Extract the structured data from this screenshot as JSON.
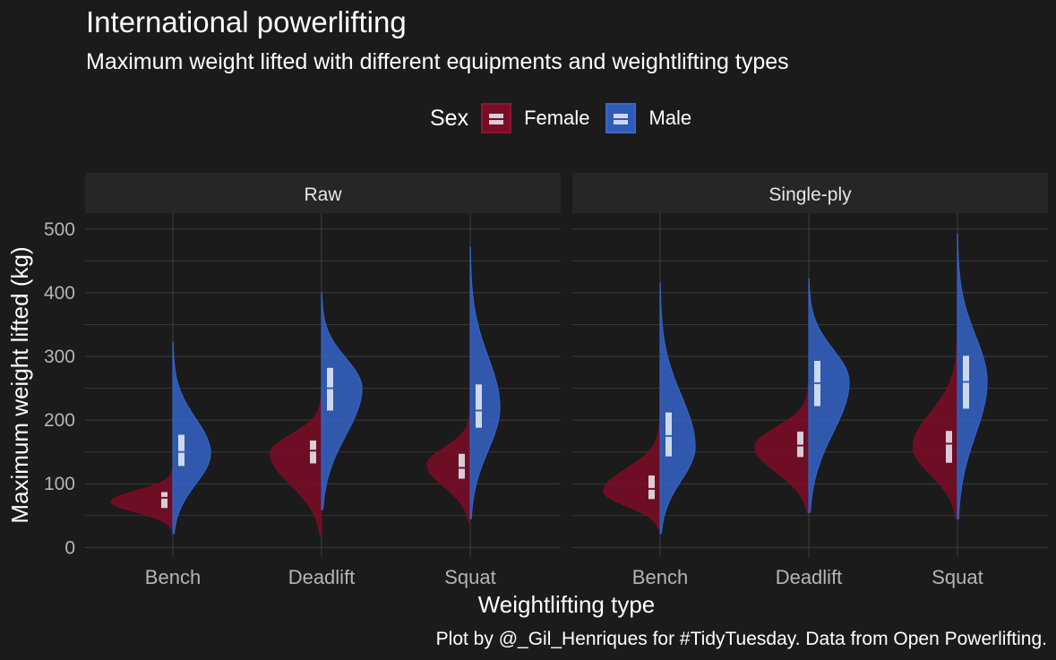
{
  "title": "International powerlifting",
  "subtitle": "Maximum weight lifted with different equipments and weightlifting types",
  "caption": "Plot by @_Gil_Henriques for #TidyTuesday. Data from Open Powerlifting.",
  "legend": {
    "title": "Sex",
    "items": [
      {
        "label": "Female",
        "color": "#7b0c26",
        "border": "#8e1530"
      },
      {
        "label": "Male",
        "color": "#2f5bb8",
        "border": "#3a68c8"
      }
    ]
  },
  "colors": {
    "background": "#1b1b1b",
    "panel_strip": "#262626",
    "grid": "#3d3d3d",
    "tick_text": "#b5b5b5",
    "female_fill": "#7b0c26",
    "male_fill": "#3463c6",
    "box_fill": "#e9eef8"
  },
  "chart_data": {
    "type": "split-violin",
    "xlabel": "Weightlifting type",
    "ylabel": "Maximum weight lifted (kg)",
    "ylim": [
      -15,
      525
    ],
    "yticks": [
      0,
      100,
      200,
      300,
      400,
      500
    ],
    "categories": [
      "Bench",
      "Deadlift",
      "Squat"
    ],
    "grid": true,
    "legend_position": "top",
    "panels": [
      {
        "name": "Raw",
        "groups": [
          {
            "category": "Bench",
            "female": {
              "min": 30,
              "max": 125,
              "mode": 72,
              "q1": 62,
              "median": 78,
              "q3": 87,
              "width": 0.46
            },
            "male": {
              "min": 22,
              "max": 322,
              "mode": 148,
              "q1": 128,
              "median": 150,
              "q3": 177,
              "width": 0.28
            }
          },
          {
            "category": "Deadlift",
            "female": {
              "min": 20,
              "max": 240,
              "mode": 148,
              "q1": 132,
              "median": 152,
              "q3": 168,
              "width": 0.38
            },
            "male": {
              "min": 60,
              "max": 400,
              "mode": 250,
              "q1": 215,
              "median": 250,
              "q3": 282,
              "width": 0.3
            }
          },
          {
            "category": "Squat",
            "female": {
              "min": 40,
              "max": 215,
              "mode": 130,
              "q1": 108,
              "median": 125,
              "q3": 147,
              "width": 0.32
            },
            "male": {
              "min": 45,
              "max": 472,
              "mode": 220,
              "q1": 188,
              "median": 215,
              "q3": 256,
              "width": 0.22
            }
          }
        ]
      },
      {
        "name": "Single-ply",
        "groups": [
          {
            "category": "Bench",
            "female": {
              "min": 30,
              "max": 200,
              "mode": 88,
              "q1": 76,
              "median": 92,
              "q3": 113,
              "width": 0.42
            },
            "male": {
              "min": 22,
              "max": 415,
              "mode": 158,
              "q1": 143,
              "median": 175,
              "q3": 212,
              "width": 0.26
            }
          },
          {
            "category": "Deadlift",
            "female": {
              "min": 55,
              "max": 255,
              "mode": 158,
              "q1": 142,
              "median": 160,
              "q3": 182,
              "width": 0.4
            },
            "male": {
              "min": 55,
              "max": 422,
              "mode": 260,
              "q1": 222,
              "median": 258,
              "q3": 293,
              "width": 0.3
            }
          },
          {
            "category": "Squat",
            "female": {
              "min": 45,
              "max": 330,
              "mode": 158,
              "q1": 133,
              "median": 163,
              "q3": 183,
              "width": 0.33
            },
            "male": {
              "min": 45,
              "max": 492,
              "mode": 260,
              "q1": 218,
              "median": 260,
              "q3": 301,
              "width": 0.22
            }
          }
        ]
      }
    ]
  }
}
